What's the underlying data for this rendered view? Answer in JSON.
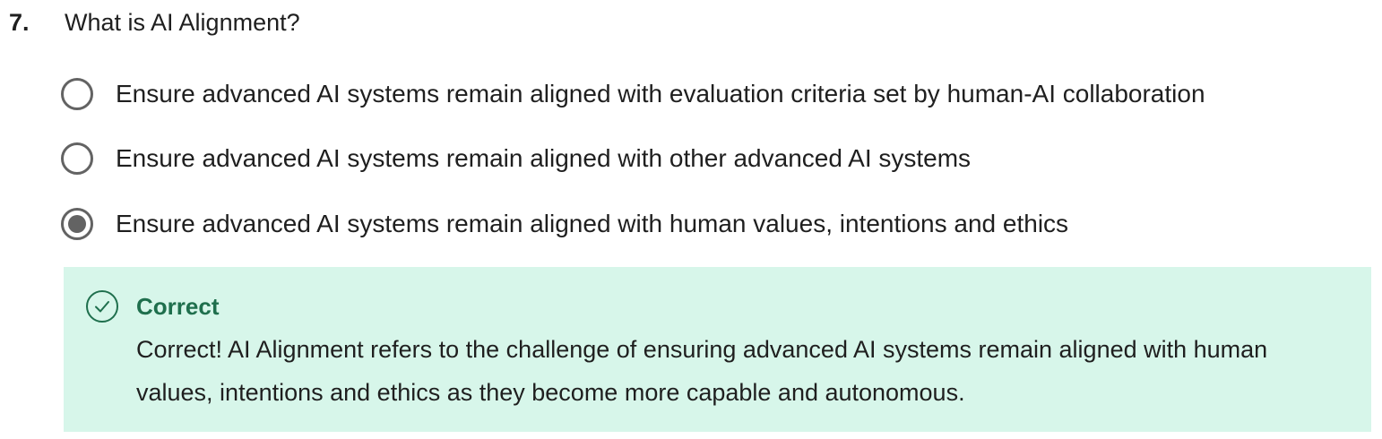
{
  "question": {
    "number": "7.",
    "text": "What is AI Alignment?"
  },
  "options": [
    {
      "label": "Ensure advanced AI systems remain aligned with evaluation criteria set by human-AI collaboration",
      "selected": false
    },
    {
      "label": "Ensure advanced AI systems remain aligned with other advanced AI systems",
      "selected": false
    },
    {
      "label": "Ensure advanced AI systems remain aligned with human values, intentions and ethics",
      "selected": true
    }
  ],
  "feedback": {
    "icon": "check-circle-icon",
    "title": "Correct",
    "body": "Correct! AI Alignment refers to the challenge of ensuring advanced AI systems remain aligned with human values, intentions and ethics as they become more capable and autonomous.",
    "background_color": "#d7f6ea",
    "accent_color": "#1f6f4d"
  }
}
